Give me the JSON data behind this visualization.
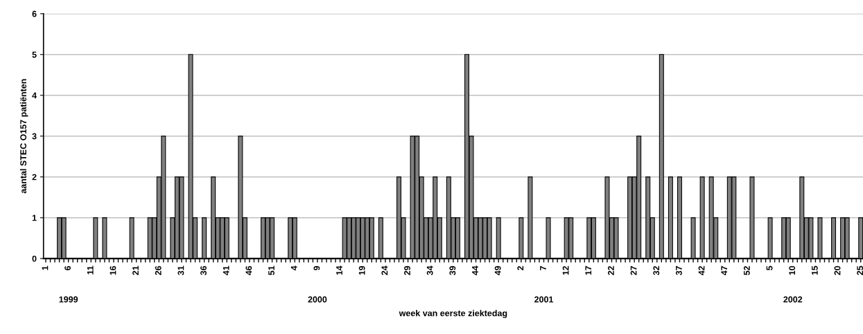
{
  "chart_data": {
    "type": "bar",
    "xlabel": "week van eerste ziektedag",
    "ylabel": "aantal STEC O157 patiënten",
    "categories": [
      "1",
      null,
      null,
      null,
      null,
      "6",
      null,
      null,
      null,
      null,
      "11",
      null,
      null,
      null,
      null,
      "16",
      null,
      null,
      null,
      null,
      "21",
      null,
      null,
      null,
      null,
      "26",
      null,
      null,
      null,
      null,
      "31",
      null,
      null,
      null,
      null,
      "36",
      null,
      null,
      null,
      null,
      "41",
      null,
      null,
      null,
      null,
      "46",
      null,
      null,
      null,
      null,
      "51",
      null,
      null,
      null,
      null,
      "4",
      null,
      null,
      null,
      null,
      "9",
      null,
      null,
      null,
      null,
      "14",
      null,
      null,
      null,
      null,
      "19",
      null,
      null,
      null,
      null,
      "24",
      null,
      null,
      null,
      null,
      "29",
      null,
      null,
      null,
      null,
      "34",
      null,
      null,
      null,
      null,
      "39",
      null,
      null,
      null,
      null,
      "44",
      null,
      null,
      null,
      null,
      "49",
      null,
      null,
      null,
      null,
      "2",
      null,
      null,
      null,
      null,
      "7",
      null,
      null,
      null,
      null,
      "12",
      null,
      null,
      null,
      null,
      "17",
      null,
      null,
      null,
      null,
      "22",
      null,
      null,
      null,
      null,
      "27",
      null,
      null,
      null,
      null,
      "32",
      null,
      null,
      null,
      null,
      "37",
      null,
      null,
      null,
      null,
      "42",
      null,
      null,
      null,
      null,
      "47",
      null,
      null,
      null,
      null,
      "52",
      null,
      null,
      null,
      null,
      "5",
      null,
      null,
      null,
      null,
      "10",
      null,
      null,
      null,
      null,
      "15",
      null,
      null,
      null,
      null,
      "20",
      null,
      null,
      null,
      null,
      "25"
    ],
    "values": [
      0,
      0,
      0,
      1,
      1,
      0,
      0,
      0,
      0,
      0,
      0,
      1,
      0,
      1,
      0,
      0,
      0,
      0,
      0,
      1,
      0,
      0,
      0,
      1,
      1,
      2,
      3,
      0,
      1,
      2,
      2,
      0,
      5,
      1,
      0,
      1,
      0,
      2,
      1,
      1,
      1,
      0,
      0,
      3,
      1,
      0,
      0,
      0,
      1,
      1,
      1,
      0,
      0,
      0,
      1,
      1,
      0,
      0,
      0,
      0,
      0,
      0,
      0,
      0,
      0,
      0,
      1,
      1,
      1,
      1,
      1,
      1,
      1,
      0,
      1,
      0,
      0,
      0,
      2,
      1,
      0,
      3,
      3,
      2,
      1,
      1,
      2,
      1,
      0,
      2,
      1,
      1,
      0,
      5,
      3,
      1,
      1,
      1,
      1,
      0,
      1,
      0,
      0,
      0,
      0,
      1,
      0,
      2,
      0,
      0,
      0,
      1,
      0,
      0,
      0,
      1,
      1,
      0,
      0,
      0,
      1,
      1,
      0,
      0,
      2,
      1,
      1,
      0,
      0,
      2,
      2,
      3,
      0,
      2,
      1,
      0,
      5,
      0,
      2,
      0,
      2,
      0,
      0,
      1,
      0,
      2,
      0,
      2,
      1,
      0,
      0,
      2,
      2,
      0,
      0,
      0,
      2,
      0,
      0,
      0,
      1,
      0,
      0,
      1,
      1,
      0,
      0,
      2,
      1,
      1,
      0,
      1,
      0,
      0,
      1,
      0,
      1,
      1,
      0,
      0,
      1
    ],
    "color": "#808080",
    "ylim": [
      0,
      6
    ],
    "yticks": [
      0,
      1,
      2,
      3,
      4,
      5,
      6
    ],
    "grid": "y",
    "annotations": [
      "1999",
      "2000",
      "2001",
      "2002"
    ]
  }
}
